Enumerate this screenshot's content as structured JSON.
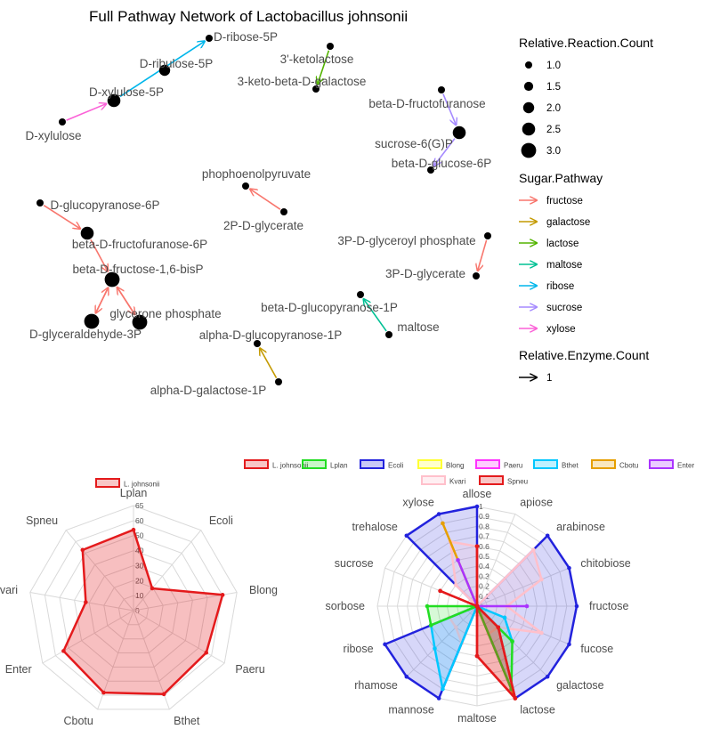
{
  "chart_data": [
    {
      "type": "network",
      "title": "Full Pathway Network of Lactobacillus johnsonii",
      "nodes": [
        {
          "id": "D-ribose-5P",
          "label": "D-ribose-5P",
          "size": 1.0
        },
        {
          "id": "D-ribulose-5P",
          "label": "D-ribulose-5P",
          "size": 2.0
        },
        {
          "id": "D-xylulose-5P",
          "label": "D-xylulose-5P",
          "size": 2.5
        },
        {
          "id": "D-xylulose",
          "label": "D-xylulose",
          "size": 1.0
        },
        {
          "id": "3-ketolactose",
          "label": "3'-ketolactose",
          "size": 1.0
        },
        {
          "id": "3-keto-beta-D-galactose",
          "label": "3-keto-beta-D-galactose",
          "size": 1.0
        },
        {
          "id": "beta-D-fructofuranose",
          "label": "beta-D-fructofuranose",
          "size": 1.0
        },
        {
          "id": "sucrose-6(G)P",
          "label": "sucrose-6(G)P",
          "size": 2.5
        },
        {
          "id": "beta-D-glucose-6P",
          "label": "beta-D-glucose-6P",
          "size": 1.0
        },
        {
          "id": "phophoenolpyruvate",
          "label": "phophoenolpyruvate",
          "size": 1.0
        },
        {
          "id": "2P-D-glycerate",
          "label": "2P-D-glycerate",
          "size": 1.0
        },
        {
          "id": "D-glucopyranose-6P",
          "label": "D-glucopyranose-6P",
          "size": 1.0
        },
        {
          "id": "beta-D-fructofuranose-6P",
          "label": "beta-D-fructofuranose-6P",
          "size": 2.5
        },
        {
          "id": "beta-D-fructose-1,6-bisP",
          "label": "beta-D-fructose-1,6-bisP",
          "size": 3.0
        },
        {
          "id": "glycerone phosphate",
          "label": "glycerone phosphate",
          "size": 3.0
        },
        {
          "id": "D-glyceraldehyde-3P",
          "label": "D-glyceraldehyde-3P",
          "size": 3.0
        },
        {
          "id": "3P-D-glyceroyl phosphate",
          "label": "3P-D-glyceroyl phosphate",
          "size": 1.0
        },
        {
          "id": "3P-D-glycerate",
          "label": "3P-D-glycerate",
          "size": 1.0
        },
        {
          "id": "beta-D-glucopyranose-1P",
          "label": "beta-D-glucopyranose-1P",
          "size": 1.0
        },
        {
          "id": "maltose",
          "label": "maltose",
          "size": 1.0
        },
        {
          "id": "alpha-D-glucopyranose-1P",
          "label": "alpha-D-glucopyranose-1P",
          "size": 1.0
        },
        {
          "id": "alpha-D-galactose-1P",
          "label": "alpha-D-galactose-1P",
          "size": 1.0
        }
      ],
      "edges": [
        {
          "from": "D-xylulose-5P",
          "to": "D-ribose-5P",
          "pathway": "ribose"
        },
        {
          "from": "D-xylulose",
          "to": "D-xylulose-5P",
          "pathway": "xylose"
        },
        {
          "from": "3-ketolactose",
          "to": "3-keto-beta-D-galactose",
          "pathway": "lactose"
        },
        {
          "from": "beta-D-fructofuranose",
          "to": "sucrose-6(G)P",
          "pathway": "sucrose"
        },
        {
          "from": "sucrose-6(G)P",
          "to": "beta-D-glucose-6P",
          "pathway": "sucrose"
        },
        {
          "from": "2P-D-glycerate",
          "to": "phophoenolpyruvate",
          "pathway": "fructose"
        },
        {
          "from": "D-glucopyranose-6P",
          "to": "beta-D-fructofuranose-6P",
          "pathway": "fructose"
        },
        {
          "from": "beta-D-fructofuranose-6P",
          "to": "beta-D-fructose-1,6-bisP",
          "pathway": "fructose"
        },
        {
          "from": "D-glyceraldehyde-3P",
          "to": "beta-D-fructose-1,6-bisP",
          "pathway": "fructose"
        },
        {
          "from": "glycerone phosphate",
          "to": "beta-D-fructose-1,6-bisP",
          "pathway": "fructose"
        },
        {
          "from": "beta-D-fructose-1,6-bisP",
          "to": "D-glyceraldehyde-3P",
          "pathway": "fructose"
        },
        {
          "from": "beta-D-fructose-1,6-bisP",
          "to": "glycerone phosphate",
          "pathway": "fructose"
        },
        {
          "from": "3P-D-glyceroyl phosphate",
          "to": "3P-D-glycerate",
          "pathway": "fructose"
        },
        {
          "from": "maltose",
          "to": "beta-D-glucopyranose-1P",
          "pathway": "maltose"
        },
        {
          "from": "alpha-D-galactose-1P",
          "to": "alpha-D-glucopyranose-1P",
          "pathway": "galactose"
        }
      ],
      "legend_reaction": {
        "title": "Relative.Reaction.Count",
        "values": [
          "1.0",
          "1.5",
          "2.0",
          "2.5",
          "3.0"
        ]
      },
      "legend_pathway": {
        "title": "Sugar.Pathway",
        "items": [
          {
            "name": "fructose",
            "color": "#F8766D"
          },
          {
            "name": "galactose",
            "color": "#C49A00"
          },
          {
            "name": "lactose",
            "color": "#53B400"
          },
          {
            "name": "maltose",
            "color": "#00C094"
          },
          {
            "name": "ribose",
            "color": "#00B6EB"
          },
          {
            "name": "sucrose",
            "color": "#A58AFF"
          },
          {
            "name": "xylose",
            "color": "#FB61D7"
          }
        ]
      },
      "legend_enzyme": {
        "title": "Relative.Enzyme.Count",
        "values": [
          "1"
        ]
      }
    },
    {
      "type": "radar",
      "legend": [
        "L. johnsonii"
      ],
      "axes": [
        "Lplan",
        "Ecoli",
        "Blong",
        "Paeru",
        "Bthet",
        "Cbotu",
        "Enter",
        "Kvari",
        "Spneu"
      ],
      "ticks": [
        "0",
        "10",
        "20",
        "30",
        "40",
        "50",
        "60",
        "65"
      ],
      "rmax": 65,
      "series": [
        {
          "name": "L. johnsonii",
          "color": "#E41A1C",
          "values": [
            50,
            18,
            56,
            52,
            55,
            54,
            50,
            30,
            49
          ]
        }
      ]
    },
    {
      "type": "radar",
      "legend": [
        "L. johnsonii",
        "Lplan",
        "Ecoli",
        "Blong",
        "Paeru",
        "Bthet",
        "Cbotu",
        "Enter",
        "Kvari",
        "Spneu"
      ],
      "axes": [
        "allose",
        "apiose",
        "arabinose",
        "chitobiose",
        "fructose",
        "fucose",
        "galactose",
        "lactose",
        "maltose",
        "mannose",
        "rhamose",
        "ribose",
        "sorbose",
        "sucrose",
        "trehalose",
        "xylose"
      ],
      "ticks": [
        "0",
        "0.1",
        "0.2",
        "0.3",
        "0.4",
        "0.5",
        "0.6",
        "0.7",
        "0.8",
        "0.9",
        "1"
      ],
      "rmax": 1,
      "series": [
        {
          "name": "Ecoli",
          "color": "#2222DD",
          "values": [
            1,
            0,
            1,
            1,
            1,
            1,
            1,
            1,
            0,
            1,
            1,
            1,
            0,
            0,
            1,
            1
          ]
        },
        {
          "name": "Kvari",
          "color": "#FFC0CB",
          "values": [
            0.6,
            0,
            0.8,
            0.7,
            0.3,
            0.7,
            0.3,
            0.3,
            0,
            0.4,
            0.3,
            0.3,
            0,
            0,
            0.3,
            0.7
          ]
        },
        {
          "name": "Cbotu",
          "color": "#E69F00",
          "values": [
            0,
            0,
            0,
            0,
            0,
            0,
            0,
            1,
            0,
            0,
            0,
            0,
            0,
            0,
            0,
            0.9
          ]
        },
        {
          "name": "Bthet",
          "color": "#00C8FF",
          "values": [
            0,
            0,
            0,
            0,
            0,
            0.3,
            0.5,
            0,
            0,
            0.9,
            0.6,
            0.5,
            0,
            0,
            0,
            0
          ]
        },
        {
          "name": "Lplan",
          "color": "#22DD22",
          "values": [
            0,
            0,
            0,
            0,
            0,
            0,
            0.5,
            0.9,
            0,
            0,
            0,
            0.5,
            0.5,
            0,
            0,
            0
          ]
        },
        {
          "name": "Enter",
          "color": "#AA33FF",
          "values": [
            0,
            0,
            0,
            0,
            0.5,
            0,
            0,
            0,
            0,
            0,
            0,
            0,
            0,
            0,
            0,
            0.5
          ]
        },
        {
          "name": "Paeru",
          "color": "#FF33FF",
          "values": [
            0,
            0,
            0,
            0,
            0,
            0,
            0,
            0,
            0,
            0,
            0,
            0,
            0,
            0,
            0,
            0
          ]
        },
        {
          "name": "Blong",
          "color": "#FFFF33",
          "values": [
            0,
            0,
            0,
            0,
            0,
            0,
            0,
            0,
            0,
            0,
            0,
            0,
            0,
            0,
            0,
            0
          ]
        },
        {
          "name": "Spneu",
          "color": "#E41A1C",
          "values": [
            0.6,
            0,
            0,
            0,
            0,
            0,
            0.3,
            1,
            0.5,
            0,
            0,
            0,
            0,
            0.4,
            0,
            0
          ]
        },
        {
          "name": "L. johnsonii",
          "color": "#E41A1C",
          "values": [
            0.6,
            0,
            0,
            0,
            0,
            0,
            0.3,
            1,
            0.5,
            0,
            0,
            0,
            0,
            0.4,
            0,
            0
          ]
        }
      ]
    }
  ]
}
